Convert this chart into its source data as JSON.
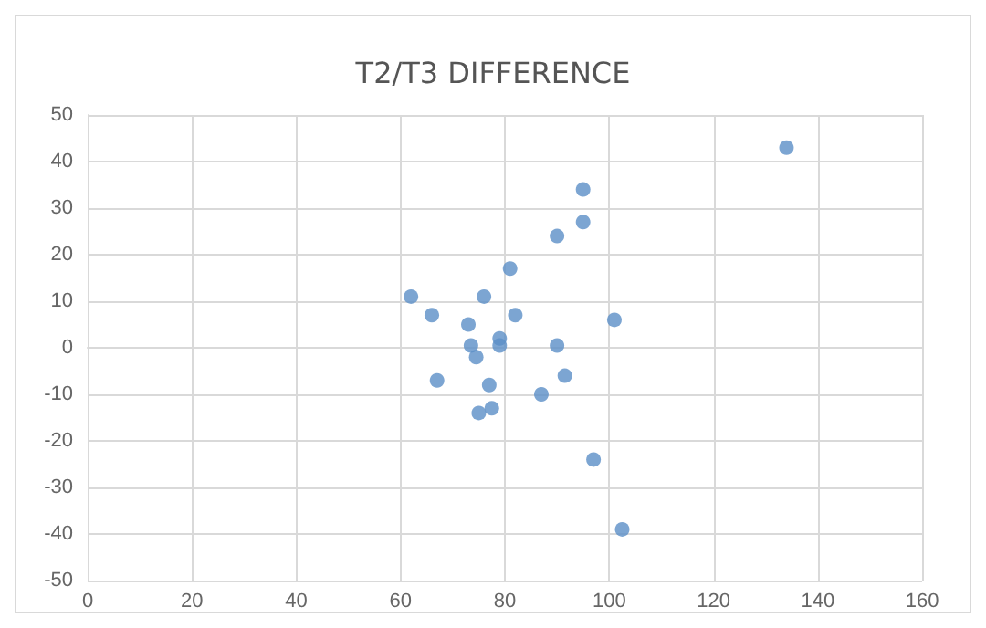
{
  "chart_data": {
    "type": "scatter",
    "title": "T2/T3 DIFFERENCE",
    "x": [
      134,
      95,
      95,
      90,
      81,
      62,
      76,
      66,
      82,
      101,
      73,
      79,
      79,
      73.5,
      74.5,
      90,
      67,
      77,
      91.5,
      87,
      75,
      77.5,
      97,
      102.5
    ],
    "values": [
      43,
      34,
      27,
      24,
      17,
      11,
      11,
      7,
      7,
      6,
      5,
      2,
      0.5,
      0.5,
      -2,
      0.5,
      -7,
      -8,
      -6,
      -10,
      -14,
      -13,
      -24,
      -39
    ],
    "color": "#5b8fc7",
    "marker": "circle",
    "xlim": [
      0,
      160
    ],
    "xticks": [
      0,
      20,
      40,
      60,
      80,
      100,
      120,
      140,
      160
    ],
    "ylim": [
      -50,
      50
    ],
    "yticks": [
      -50,
      -40,
      -30,
      -20,
      -10,
      0,
      10,
      20,
      30,
      40,
      50
    ],
    "grid": true
  }
}
